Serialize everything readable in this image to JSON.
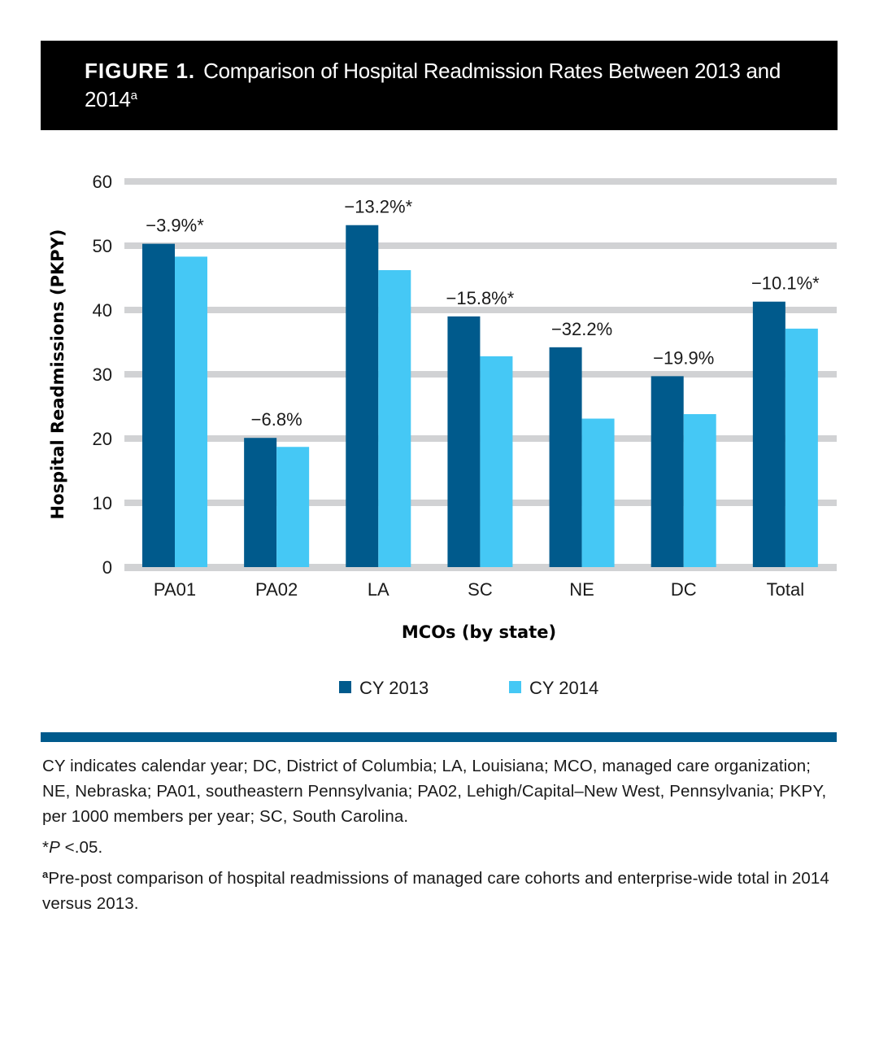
{
  "header": {
    "figure_label": "FIGURE 1.",
    "title": "Comparison of Hospital Readmission Rates Between 2013 and 2014",
    "title_superscript": "a"
  },
  "colors": {
    "cy2013": "#005a8c",
    "cy2014": "#45c8f5",
    "gridline": "#d1d2d4",
    "divider": "#005a8c"
  },
  "chart_data": {
    "type": "bar",
    "title": "Comparison of Hospital Readmission Rates Between 2013 and 2014",
    "xlabel": "MCOs (by state)",
    "ylabel": "Hospital Readmissions (PKPY)",
    "ylim": [
      0,
      60
    ],
    "yticks": [
      0,
      10,
      20,
      30,
      40,
      50,
      60
    ],
    "grid": true,
    "legend_position": "bottom-center",
    "categories": [
      "PA01",
      "PA02",
      "LA",
      "SC",
      "NE",
      "DC",
      "Total"
    ],
    "series": [
      {
        "name": "CY 2013",
        "color": "#005a8c",
        "values": [
          50.3,
          20.1,
          53.2,
          39.0,
          34.2,
          29.7,
          41.3
        ]
      },
      {
        "name": "CY 2014",
        "color": "#45c8f5",
        "values": [
          48.3,
          18.7,
          46.2,
          32.8,
          23.1,
          23.8,
          37.1
        ]
      }
    ],
    "annotations": [
      "−3.9%*",
      "−6.8%",
      "−13.2%*",
      "−15.8%*",
      "−32.2%",
      "−19.9%",
      "−10.1%*"
    ]
  },
  "notes": {
    "abbreviations": "CY indicates calendar year; DC, District of Columbia; LA, Louisiana; MCO, managed care organization; NE, Nebraska; PA01, southeastern Pennsylvania; PA02, Lehigh/Capital–New West, Pennsylvania; PKPY, per 1000 members per year; SC, South Carolina.",
    "significance_prefix": "*",
    "significance_p": "P",
    "significance_suffix": " <.05.",
    "footnote_marker": "a",
    "footnote_text": "Pre-post comparison of hospital readmissions of managed care cohorts and enterprise-wide total in 2014 versus 2013."
  }
}
